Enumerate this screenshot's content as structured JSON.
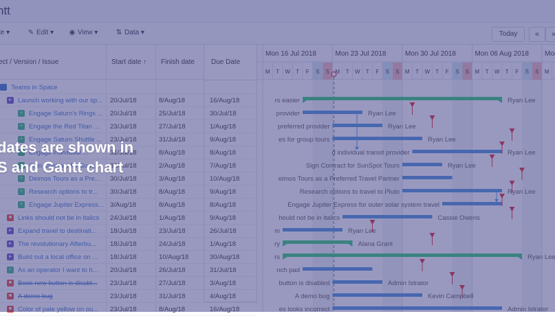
{
  "app": {
    "title": "ntt"
  },
  "toolbar": {
    "create_label": "te",
    "edit_label": "Edit",
    "view_label": "View",
    "data_label": "Data",
    "today_label": "Today",
    "prev_label": "«",
    "next_label": "»"
  },
  "grid": {
    "headers": {
      "name": "ect / Version / Issue",
      "start": "Start date",
      "start_sort": "↑",
      "finish": "Finish date",
      "due": "Due Date"
    },
    "rows": [
      {
        "name": "Teams in Space",
        "start": "",
        "finish": "",
        "due": "",
        "type": "project",
        "strike": false
      },
      {
        "name": "Launch working with our sp...",
        "start": "20/Jul/18",
        "finish": "8/Aug/18",
        "due": "16/Aug/18",
        "type": "story",
        "strike": false
      },
      {
        "name": "Engage Saturn's Rings ...",
        "start": "20/Jul/18",
        "finish": "25/Jul/18",
        "due": "30/Jul/18",
        "type": "sub",
        "strike": false
      },
      {
        "name": "Engage the Red Titan ...",
        "start": "23/Jul/18",
        "finish": "27/Jul/18",
        "due": "1/Aug/18",
        "type": "sub",
        "strike": false
      },
      {
        "name": "Engage Saturn Shuttle ...",
        "start": "23/Jul/18",
        "finish": "31/Jul/18",
        "due": "9/Aug/18",
        "type": "sub",
        "strike": false
      },
      {
        "name": "Engage Individual ...",
        "start": "31/Jul/18",
        "finish": "8/Aug/18",
        "due": "8/Aug/18",
        "type": "sub",
        "strike": false
      },
      {
        "name": "Sign Contract for Sun...",
        "start": "30/Jul/18",
        "finish": "2/Aug/18",
        "due": "7/Aug/18",
        "type": "sub",
        "strike": false
      },
      {
        "name": "Deimos Tours as a Pre...",
        "start": "30/Jul/18",
        "finish": "3/Aug/18",
        "due": "10/Aug/18",
        "type": "sub",
        "strike": false
      },
      {
        "name": "Research options to tr...",
        "start": "30/Jul/18",
        "finish": "8/Aug/18",
        "due": "9/Aug/18",
        "type": "sub",
        "strike": false
      },
      {
        "name": "Engage Jupiter Express...",
        "start": "3/Aug/18",
        "finish": "8/Aug/18",
        "due": "8/Aug/18",
        "type": "sub",
        "strike": false
      },
      {
        "name": "Links should not be in italics",
        "start": "24/Jul/18",
        "finish": "1/Aug/18",
        "due": "9/Aug/18",
        "type": "bug",
        "strike": false
      },
      {
        "name": "Expand travel to destinati...",
        "start": "18/Jul/18",
        "finish": "23/Jul/18",
        "due": "26/Jul/18",
        "type": "story",
        "strike": false
      },
      {
        "name": "The revolutionary Afterbu...",
        "start": "18/Jul/18",
        "finish": "24/Jul/18",
        "due": "1/Aug/18",
        "type": "story",
        "strike": false
      },
      {
        "name": "Build out a local office on ...",
        "start": "18/Jul/18",
        "finish": "10/Aug/18",
        "due": "30/Aug/18",
        "type": "story",
        "strike": false
      },
      {
        "name": "As an operator I want to h...",
        "start": "20/Jul/18",
        "finish": "26/Jul/18",
        "due": "31/Jul/18",
        "type": "task",
        "strike": false
      },
      {
        "name": "Book new button is disabl...",
        "start": "23/Jul/18",
        "finish": "27/Jul/18",
        "due": "3/Aug/18",
        "type": "bug",
        "strike": true
      },
      {
        "name": "A demo bug",
        "start": "23/Jul/18",
        "finish": "31/Jul/18",
        "due": "4/Aug/18",
        "type": "bug",
        "strike": true
      },
      {
        "name": "Color of pale yellow on ou...",
        "start": "23/Jul/18",
        "finish": "8/Aug/18",
        "due": "16/Aug/18",
        "type": "bug",
        "strike": false
      }
    ]
  },
  "timeline": {
    "weeks": [
      "Mon 16 Jul 2018",
      "Mon 23 Jul 2018",
      "Mon 30 Jul 2018",
      "Mon 06 Aug 2018",
      "Mon"
    ],
    "day_letters": [
      "M",
      "T",
      "W",
      "T",
      "F",
      "S",
      "S"
    ],
    "bars": [
      {
        "label": "rs easier",
        "assignee": "Ryan Lee",
        "kind": "green"
      },
      {
        "label": "provider",
        "assignee": "Ryan Lee",
        "kind": "blue"
      },
      {
        "label": "preferred provider",
        "assignee": "Ryan Lee",
        "kind": "blue"
      },
      {
        "label": "es for group tours",
        "assignee": "Ryan Lee",
        "kind": "blue"
      },
      {
        "label": "d individual transit provider",
        "assignee": "Ryan Lee",
        "kind": "blue"
      },
      {
        "label": "Sign Contract for SunSpot Tours",
        "assignee": "Ryan Lee",
        "kind": "blue"
      },
      {
        "label": "eimos Tours as a Preferred Travel Partner",
        "assignee": "",
        "kind": "blue"
      },
      {
        "label": "Research options to travel to Pluto",
        "assignee": "Ryan Lee",
        "kind": "blue"
      },
      {
        "label": "Engage Jupiter Express for outer solar system travel",
        "assignee": "",
        "kind": "blue"
      },
      {
        "label": "hould not be in italics",
        "assignee": "Cassie Owens",
        "kind": "blue"
      },
      {
        "label": "m",
        "assignee": "Ryan Lee",
        "kind": "blue"
      },
      {
        "label": "ry",
        "assignee": "Alana Grant",
        "kind": "green"
      },
      {
        "label": "rs",
        "assignee": "Ryan Lee",
        "kind": "green"
      },
      {
        "label": "nch pad",
        "assignee": "",
        "kind": "blue"
      },
      {
        "label": "button is disabled",
        "assignee": "Admin Istrator",
        "kind": "blue"
      },
      {
        "label": "A demo bug",
        "assignee": "Kevin Campbell",
        "kind": "blue"
      },
      {
        "label": "es looks incorrect",
        "assignee": "Admin Istrator",
        "kind": "blue"
      }
    ]
  },
  "overlay": {
    "line1": "dates are shown in",
    "line2": "S and Gantt chart"
  },
  "colors": {
    "blue_bar": "#4a90d9",
    "green_bar": "#2ecc71",
    "deadline": "#e0242b",
    "weekend": "#cfe6f0",
    "weekend2": "#f3b6b6"
  }
}
